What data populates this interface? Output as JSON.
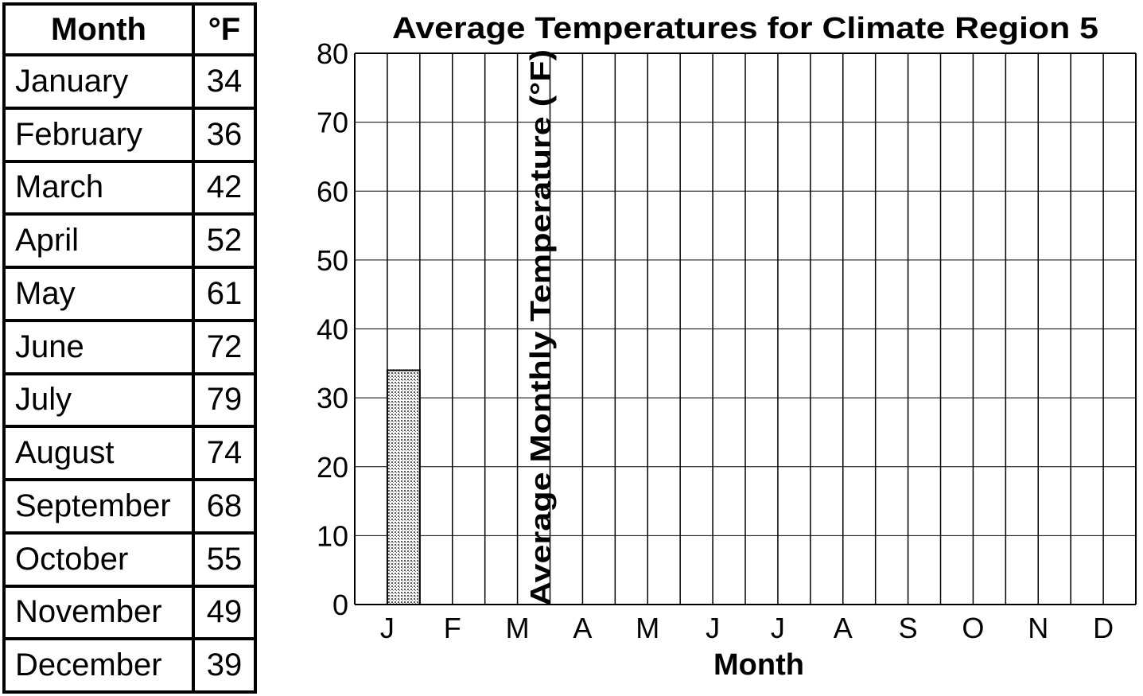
{
  "table": {
    "headers": [
      "Month",
      "°F"
    ],
    "rows": [
      [
        "January",
        "34"
      ],
      [
        "February",
        "36"
      ],
      [
        "March",
        "42"
      ],
      [
        "April",
        "52"
      ],
      [
        "May",
        "61"
      ],
      [
        "June",
        "72"
      ],
      [
        "July",
        "79"
      ],
      [
        "August",
        "74"
      ],
      [
        "September",
        "68"
      ],
      [
        "October",
        "55"
      ],
      [
        "November",
        "49"
      ],
      [
        "December",
        "39"
      ]
    ]
  },
  "chart_data": {
    "type": "bar",
    "title": "Average Temperatures for Climate Region 5",
    "xlabel": "Month",
    "ylabel": "Average Monthly Temperature (°F)",
    "categories": [
      "J",
      "F",
      "M",
      "A",
      "M",
      "J",
      "J",
      "A",
      "S",
      "O",
      "N",
      "D"
    ],
    "values": [
      34,
      null,
      null,
      null,
      null,
      null,
      null,
      null,
      null,
      null,
      null,
      null
    ],
    "ylim": [
      0,
      80
    ],
    "yticks": [
      0,
      10,
      20,
      30,
      40,
      50,
      60,
      70,
      80
    ],
    "grid": true,
    "colors": {
      "bar_fill": "#c8c8c8",
      "grid": "#000000"
    }
  }
}
